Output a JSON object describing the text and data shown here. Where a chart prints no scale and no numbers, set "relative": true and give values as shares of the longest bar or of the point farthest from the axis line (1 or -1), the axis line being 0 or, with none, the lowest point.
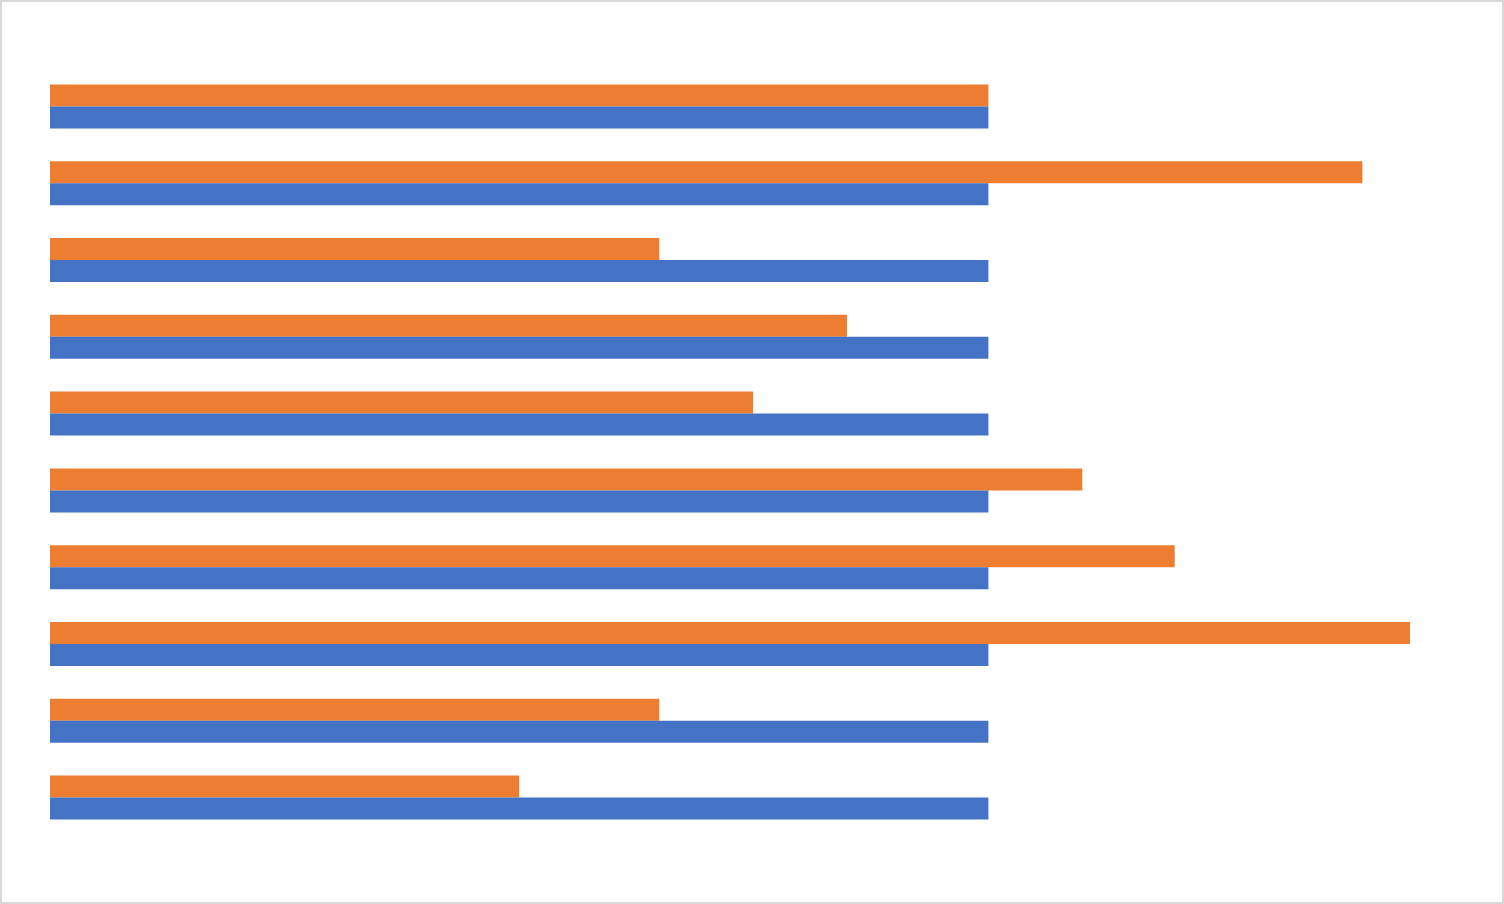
{
  "chart_data": {
    "type": "bar",
    "orientation": "horizontal",
    "relative": true,
    "categories": [
      null,
      null,
      null,
      null,
      null,
      null,
      null,
      null,
      null,
      null
    ],
    "series": [
      {
        "color": "#ed7d31",
        "values": [
          0.69,
          0.965,
          0.448,
          0.586,
          0.517,
          0.759,
          0.827,
          1,
          0.448,
          0.345
        ]
      },
      {
        "color": "#4472c4",
        "values": [
          0.69,
          0.69,
          0.69,
          0.69,
          0.69,
          0.69,
          0.69,
          0.69,
          0.69,
          0.69
        ]
      }
    ]
  }
}
